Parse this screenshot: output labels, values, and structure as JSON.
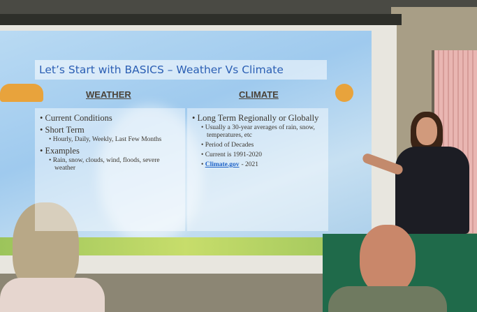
{
  "slide": {
    "title": "Let’s Start with BASICS – Weather Vs Climate",
    "columns": [
      {
        "heading": "WEATHER",
        "items": [
          {
            "text": "Current Conditions"
          },
          {
            "text": "Short Term",
            "sub": [
              {
                "text": "Hourly, Daily, Weekly, Last Few Months"
              }
            ]
          },
          {
            "text": "Examples",
            "sub": [
              {
                "text": "Rain, snow, clouds, wind, floods, severe weather"
              }
            ]
          }
        ]
      },
      {
        "heading": "CLIMATE",
        "items": [
          {
            "text": "Long Term Regionally or Globally",
            "sub": [
              {
                "text": "Usually a 30-year averages of rain, snow, temperatures, etc"
              },
              {
                "text": "Period of Decades"
              },
              {
                "text": "Current is 1991-2020"
              },
              {
                "link": "Climate.gov",
                "text": "- 2021"
              }
            ]
          }
        ]
      }
    ]
  }
}
